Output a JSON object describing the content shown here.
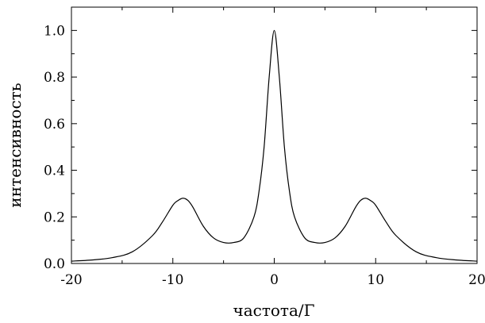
{
  "chart_data": {
    "type": "line",
    "title": "",
    "xlabel": "частота/Γ",
    "ylabel": "интенсивность",
    "xlim": [
      -20,
      20
    ],
    "ylim": [
      0,
      1.1
    ],
    "x_ticks": [
      -20,
      -10,
      0,
      10,
      20
    ],
    "x_tick_labels": [
      "-20",
      "-10",
      "0",
      "10",
      "20"
    ],
    "y_ticks": [
      0,
      0.2,
      0.4,
      0.6,
      0.8,
      1.0
    ],
    "y_tick_labels": [
      "0.0",
      "0.2",
      "0.4",
      "0.6",
      "0.8",
      "1.0"
    ],
    "grid": false,
    "legend": "none",
    "series": [
      {
        "color": "#000000",
        "x": [
          -20,
          -18,
          -16,
          -14,
          -12,
          -11,
          -10,
          -9.5,
          -9,
          -8.5,
          -8,
          -7,
          -6,
          -5,
          -4,
          -3,
          -2,
          -1.5,
          -1,
          -0.5,
          0,
          0.5,
          1,
          1.5,
          2,
          3,
          4,
          5,
          6,
          7,
          8,
          8.5,
          9,
          9.5,
          10,
          11,
          12,
          14,
          16,
          18,
          20
        ],
        "y": [
          0.01,
          0.015,
          0.025,
          0.05,
          0.12,
          0.18,
          0.25,
          0.27,
          0.28,
          0.27,
          0.24,
          0.16,
          0.11,
          0.09,
          0.09,
          0.11,
          0.2,
          0.31,
          0.5,
          0.8,
          1.0,
          0.8,
          0.5,
          0.31,
          0.2,
          0.11,
          0.09,
          0.09,
          0.11,
          0.16,
          0.24,
          0.27,
          0.28,
          0.27,
          0.25,
          0.18,
          0.12,
          0.05,
          0.025,
          0.015,
          0.01
        ]
      }
    ]
  }
}
